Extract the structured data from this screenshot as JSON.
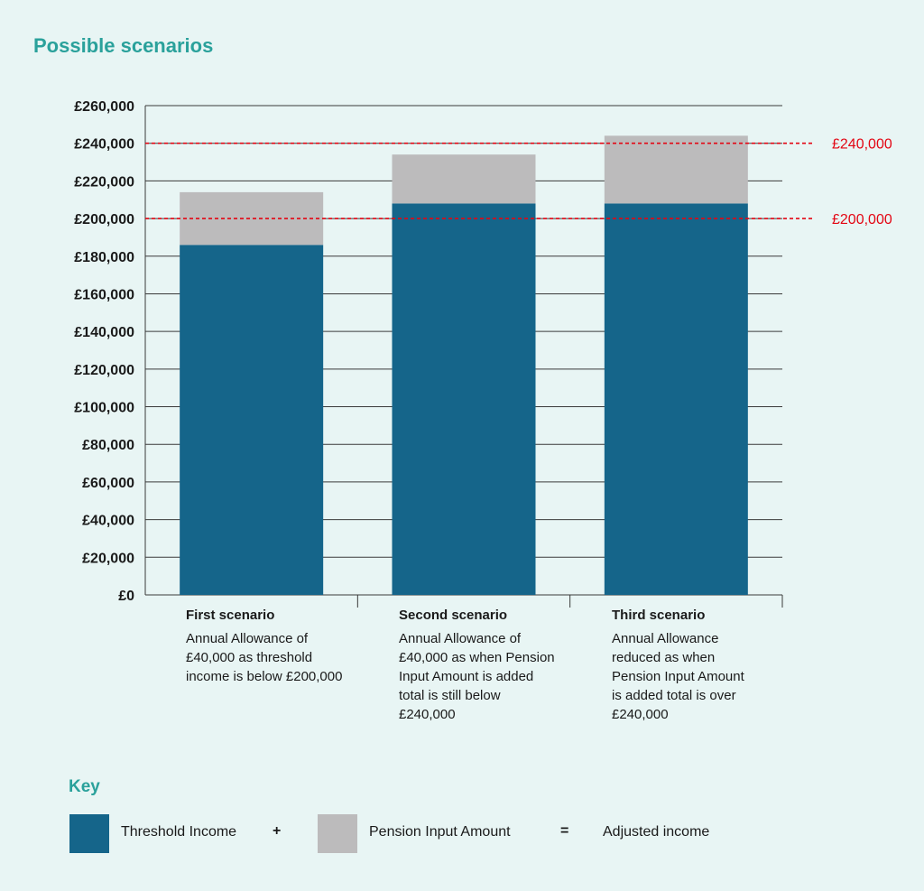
{
  "title": "Possible scenarios",
  "chart_data": {
    "type": "bar",
    "stacked": true,
    "categories": [
      "First scenario",
      "Second scenario",
      "Third scenario"
    ],
    "series": [
      {
        "name": "Threshold Income",
        "color": "#15658a",
        "values": [
          186000,
          208000,
          208000
        ]
      },
      {
        "name": "Pension Input Amount",
        "color": "#bcbbbc",
        "values": [
          28000,
          26000,
          36000
        ]
      }
    ],
    "ylim": [
      0,
      260000
    ],
    "yticks": [
      0,
      20000,
      40000,
      60000,
      80000,
      100000,
      120000,
      140000,
      160000,
      180000,
      200000,
      220000,
      240000,
      260000
    ],
    "ytick_labels": [
      "£0",
      "£20,000",
      "£40,000",
      "£60,000",
      "£80,000",
      "£100,000",
      "£120,000",
      "£140,000",
      "£160,000",
      "£180,000",
      "£200,000",
      "£220,000",
      "£240,000",
      "£260,000"
    ],
    "grid": true,
    "reference_lines": [
      {
        "value": 240000,
        "label": "£240,000",
        "color": "#e30613"
      },
      {
        "value": 200000,
        "label": "£200,000",
        "color": "#e30613"
      }
    ]
  },
  "scenarios": [
    {
      "title": "First scenario",
      "description": "Annual Allowance of £40,000 as threshold income is below £200,000"
    },
    {
      "title": "Second scenario",
      "description": "Annual Allowance of £40,000 as when Pension Input Amount is added total is still below £240,000"
    },
    {
      "title": "Third scenario",
      "description": "Annual Allowance reduced as when Pension Input Amount is added total is over £240,000"
    }
  ],
  "key": {
    "title": "Key",
    "items": [
      {
        "label": "Threshold Income",
        "color": "#15658a"
      },
      {
        "label": "Pension Input Amount",
        "color": "#bcbbbc"
      },
      {
        "label": "Adjusted income"
      }
    ],
    "plus": "+",
    "equals": "="
  }
}
